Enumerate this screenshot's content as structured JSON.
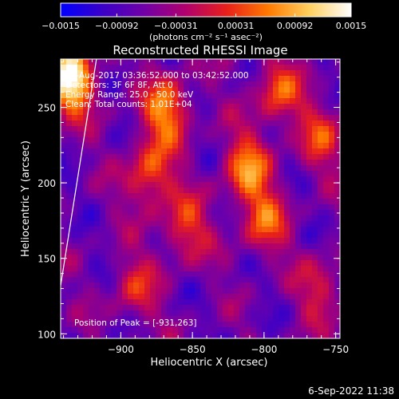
{
  "chart_data": {
    "type": "heatmap",
    "title": "Reconstructed RHESSI Image",
    "xlabel": "Heliocentric X (arcsec)",
    "ylabel": "Heliocentric Y (arcsec)",
    "xlim": [
      -942,
      -747
    ],
    "ylim": [
      97,
      282
    ],
    "x_ticks": [
      -900,
      -850,
      -800,
      -750
    ],
    "x_tick_labels": [
      "−900",
      "−850",
      "−800",
      "−750"
    ],
    "y_ticks": [
      100,
      150,
      200,
      250
    ],
    "y_tick_labels": [
      "100",
      "150",
      "200",
      "250"
    ],
    "colorbar": {
      "min": -0.0015,
      "max": 0.0015,
      "ticks": [
        -0.0015,
        -0.00092,
        -0.00031,
        0.00031,
        0.00092,
        0.0015
      ],
      "tick_labels": [
        "−0.0015",
        "−0.00092",
        "−0.00031",
        "0.00031",
        "0.00092",
        "0.0015"
      ],
      "unit_label": "(photons cm⁻² s⁻¹ asec⁻²)",
      "colors": [
        "#0000ff",
        "#3a00c8",
        "#7000a8",
        "#b0006e",
        "#e8201a",
        "#ff7a00",
        "#ffd060",
        "#ffffff"
      ]
    },
    "info_lines": [
      "31-Aug-2017 03:36:52.000 to 03:42:52.000",
      "Detectors: 3F 6F 8F, Att 0",
      "Energy Range: 25.0 - 50.0 keV",
      "Clean;  Total counts: 1.01E+04"
    ],
    "peak_label": "Position of Peak = [-931,263]",
    "peak": {
      "x": -931,
      "y": 263
    },
    "sources": [
      {
        "x": -935,
        "y": 268,
        "amp": 1.0
      },
      {
        "x": -868,
        "y": 248,
        "amp": 0.65
      },
      {
        "x": -880,
        "y": 205,
        "amp": 0.55
      },
      {
        "x": -855,
        "y": 170,
        "amp": 0.45
      },
      {
        "x": -812,
        "y": 210,
        "amp": 0.6
      },
      {
        "x": -800,
        "y": 175,
        "amp": 0.5
      },
      {
        "x": -790,
        "y": 260,
        "amp": 0.5
      },
      {
        "x": -760,
        "y": 230,
        "amp": 0.4
      },
      {
        "x": -890,
        "y": 130,
        "amp": 0.35
      },
      {
        "x": -760,
        "y": 130,
        "amp": 0.35
      }
    ],
    "limb_line": [
      {
        "x": -942,
        "y": 132
      },
      {
        "x": -917,
        "y": 282
      }
    ]
  },
  "timestamp": "6-Sep-2022 11:38"
}
